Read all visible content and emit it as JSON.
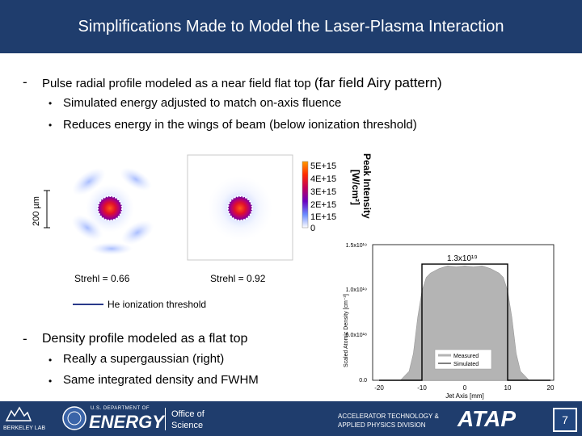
{
  "title": "Simplifications Made to Model the Laser-Plasma Interaction",
  "bullet1": {
    "dash": "-",
    "text_a": "Pulse radial profile modeled as a near field flat top",
    "text_b": "(far field Airy pattern)",
    "subs": [
      "Simulated energy adjusted to match on-axis fluence",
      "Reduces energy in the wings of beam (below ionization threshold)"
    ]
  },
  "spot_figure": {
    "scale_label": "200 µm",
    "colorbar_ticks": [
      "5E+15",
      "4E+15",
      "3E+15",
      "2E+15",
      "1E+15",
      "0"
    ],
    "colorbar_title_1": "Peak Intensity",
    "colorbar_title_2": "[W/cm²]",
    "strehl_left": "Strehl = 0.66",
    "strehl_right": "Strehl = 0.92",
    "legend_label": "He ionization threshold"
  },
  "density_chart": {
    "annotation": "1.3x10¹⁹",
    "ylabel": "Scaled Atomic Density [cm⁻³]",
    "xlabel": "Jet Axis [mm]",
    "x_ticks": [
      "-20",
      "-10",
      "0",
      "10",
      "20"
    ],
    "y_ticks": [
      "1.5x10¹⁹",
      "1.0x10¹⁹",
      "5.0x10¹⁸",
      "0.0"
    ],
    "legend": [
      "Measured",
      "Simulated"
    ]
  },
  "chart_data": {
    "type": "area",
    "title": "",
    "xlabel": "Jet Axis [mm]",
    "ylabel": "Scaled Atomic Density [cm⁻³]",
    "xlim": [
      -20,
      20
    ],
    "ylim": [
      0,
      1.5e+19
    ],
    "annotations": [
      "1.3x10¹⁹"
    ],
    "legend_position": "bottom-right",
    "series": [
      {
        "name": "Measured",
        "x": [
          -20,
          -15,
          -13,
          -12,
          -11,
          -10,
          -9,
          -8,
          -6,
          -4,
          -2,
          0,
          2,
          4,
          6,
          8,
          9,
          10,
          11,
          12,
          13,
          15,
          20
        ],
        "y": [
          0,
          0,
          1e+18,
          3e+18,
          7e+18,
          1e+19,
          1.15e+19,
          1.2e+19,
          1.25e+19,
          1.28e+19,
          1.27e+19,
          1.28e+19,
          1.27e+19,
          1.28e+19,
          1.25e+19,
          1.2e+19,
          1.15e+19,
          1e+19,
          7e+18,
          3e+18,
          1e+18,
          0,
          0
        ]
      },
      {
        "name": "Simulated",
        "x": [
          -20,
          -10,
          -10,
          10,
          10,
          20
        ],
        "y": [
          0,
          0,
          1.3e+19,
          1.3e+19,
          0,
          0
        ]
      }
    ]
  },
  "bullet2": {
    "dash": "-",
    "text": "Density profile modeled as a flat top",
    "subs": [
      "Really a supergaussian (right)",
      "Same integrated density and FWHM"
    ]
  },
  "footer": {
    "lab": "BERKELEY LAB",
    "doe_top": "U.S. DEPARTMENT OF",
    "doe_main": "ENERGY",
    "office_1": "Office of",
    "office_2": "Science",
    "div_1": "ACCELERATOR TECHNOLOGY &",
    "div_2": "APPLIED PHYSICS DIVISION",
    "atap": "ATAP",
    "page": "7"
  },
  "colors": {
    "bar": "#1f3d6d",
    "gray_fill": "#b4b4b4"
  }
}
